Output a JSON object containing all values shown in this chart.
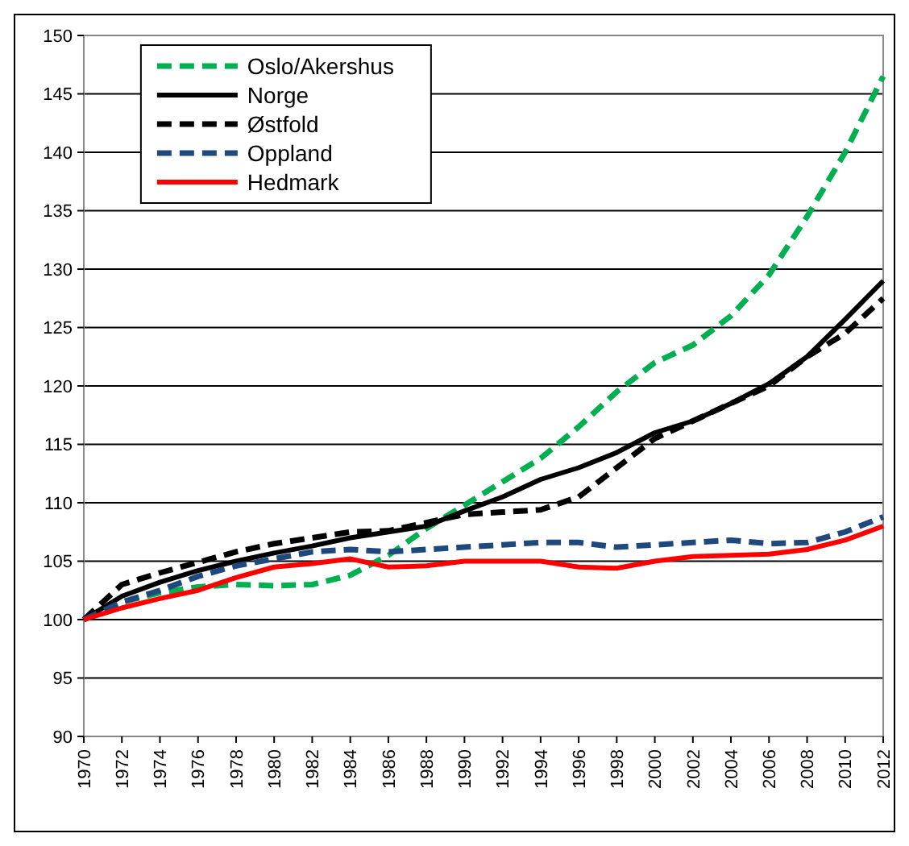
{
  "chart_data": {
    "type": "line",
    "x": [
      1970,
      1972,
      1974,
      1976,
      1978,
      1980,
      1982,
      1984,
      1986,
      1988,
      1990,
      1992,
      1994,
      1996,
      1998,
      2000,
      2002,
      2004,
      2006,
      2008,
      2010,
      2012
    ],
    "series": [
      {
        "name": "Oslo/Akershus",
        "color": "#00b050",
        "line_style": "dashed",
        "values": [
          100,
          101.5,
          102.3,
          102.8,
          103,
          102.9,
          103,
          103.8,
          105.5,
          107.8,
          109.8,
          111.8,
          113.8,
          116.5,
          119.5,
          122,
          123.5,
          126,
          129.5,
          134.5,
          140,
          146.5
        ]
      },
      {
        "name": "Norge",
        "color": "#000000",
        "line_style": "solid",
        "values": [
          100,
          102,
          103.2,
          104.2,
          105,
          105.7,
          106.3,
          107,
          107.5,
          108,
          109.3,
          110.5,
          112,
          113,
          114.3,
          116,
          117,
          118.5,
          120.2,
          122.5,
          125.7,
          129
        ]
      },
      {
        "name": "Østfold",
        "color": "#000000",
        "line_style": "dashed",
        "values": [
          100,
          103,
          104,
          104.9,
          105.8,
          106.5,
          107,
          107.5,
          107.6,
          108.3,
          109,
          109.2,
          109.4,
          110.5,
          113,
          115.5,
          117,
          118.5,
          120,
          122.5,
          124.5,
          127.5
        ]
      },
      {
        "name": "Oppland",
        "color": "#1f497d",
        "line_style": "dashed",
        "values": [
          100,
          101.5,
          102.5,
          103.7,
          104.6,
          105.2,
          105.8,
          106,
          105.8,
          106,
          106.2,
          106.4,
          106.6,
          106.6,
          106.2,
          106.4,
          106.6,
          106.8,
          106.5,
          106.6,
          107.5,
          108.8
        ]
      },
      {
        "name": "Hedmark",
        "color": "#ff0000",
        "line_style": "solid",
        "values": [
          100,
          101,
          101.8,
          102.5,
          103.6,
          104.5,
          104.8,
          105.2,
          104.5,
          104.6,
          105,
          105,
          105,
          104.5,
          104.4,
          105,
          105.4,
          105.5,
          105.6,
          106,
          106.8,
          108
        ]
      }
    ],
    "xlim": [
      1970,
      2012
    ],
    "xticks": [
      1970,
      1972,
      1974,
      1976,
      1978,
      1980,
      1982,
      1984,
      1986,
      1988,
      1990,
      1992,
      1994,
      1996,
      1998,
      2000,
      2002,
      2004,
      2006,
      2008,
      2010,
      2012
    ],
    "ylim": [
      90,
      150
    ],
    "yticks": [
      90,
      95,
      100,
      105,
      110,
      115,
      120,
      125,
      130,
      135,
      140,
      145,
      150
    ],
    "grid": "y",
    "legend": "top left",
    "marker": "none"
  }
}
